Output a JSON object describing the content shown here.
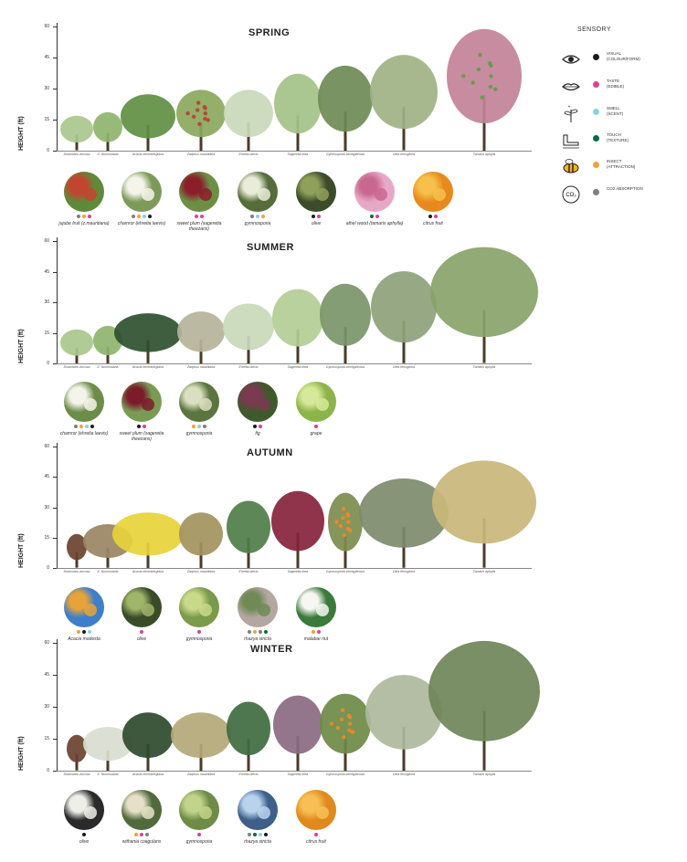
{
  "colors": {
    "visual": "#1b1b1b",
    "taste": "#d9448f",
    "smell": "#8ecde6",
    "touch": "#0d6b3a",
    "insect": "#f0a23a",
    "co2": "#7f7f7f"
  },
  "legend": {
    "title": "SENSORY",
    "items": [
      {
        "key": "visual",
        "icon": "eye-icon",
        "line1": "VISUAL",
        "line2": "(COLOUR/FORM)"
      },
      {
        "key": "taste",
        "icon": "lips-icon",
        "line1": "TASTE",
        "line2": "(EDIBLE)"
      },
      {
        "key": "smell",
        "icon": "plant-scent-icon",
        "line1": "SMELL",
        "line2": "(SCENT)"
      },
      {
        "key": "touch",
        "icon": "hand-touch-icon",
        "line1": "TOUCH",
        "line2": "(TEXTURE)"
      },
      {
        "key": "insect",
        "icon": "bee-icon",
        "line1": "INSECT",
        "line2": "(ATTRACTION)"
      },
      {
        "key": "co2",
        "icon": "co2-icon",
        "line1": "CO2 ABSORPTION",
        "line2": ""
      }
    ]
  },
  "axis": {
    "label": "HEIGHT (ft)",
    "ticks": [
      "0",
      "15",
      "30",
      "45",
      "60"
    ],
    "ylim": [
      0,
      60
    ]
  },
  "species": [
    "Dodonaea viscosa",
    "Z. Nummularia",
    "Acacia ehrenbergiana",
    "Ziziphus mauritiana",
    "Ehretia laevis",
    "Sageretia thea",
    "Gymnosporia senegalensis",
    "Olea ferruginea",
    "Tamarix aphylla"
  ],
  "seasons": [
    {
      "title": "SPRING",
      "trees": [
        {
          "h": 17,
          "w": 38,
          "c": "#a9c78d"
        },
        {
          "h": 19,
          "w": 34,
          "c": "#8fb46d"
        },
        {
          "h": 28,
          "w": 62,
          "c": "#5f8f43"
        },
        {
          "h": 30,
          "w": 56,
          "c": "#8aa85d",
          "accent": "#b64a3a"
        },
        {
          "h": 30,
          "w": 56,
          "c": "#c9d8b8"
        },
        {
          "h": 38,
          "w": 54,
          "c": "#a4c288"
        },
        {
          "h": 42,
          "w": 62,
          "c": "#6f8a55"
        },
        {
          "h": 47,
          "w": 76,
          "c": "#9fb286"
        },
        {
          "h": 60,
          "w": 84,
          "c": "#c28298",
          "accent": "#6b9a4f"
        }
      ],
      "fruits": [
        {
          "label": "jujube fruit (z.mauritiana)",
          "dots": [
            "co2",
            "insect",
            "taste"
          ],
          "c1": "#5f8a3a",
          "c2": "#c2452f"
        },
        {
          "label": "chamror (ehretia laevis)",
          "dots": [
            "co2",
            "insect",
            "smell",
            "visual"
          ],
          "c1": "#7d9a5a",
          "c2": "#f4f4ea"
        },
        {
          "label": "sweet plum (sageretia theezans)",
          "dots": [
            "taste",
            "taste"
          ],
          "c1": "#6d8f45",
          "c2": "#8a1f2b"
        },
        {
          "label": "gymnosporia",
          "dots": [
            "co2",
            "smell",
            "insect"
          ],
          "c1": "#556d3a",
          "c2": "#e9ecd8"
        },
        {
          "label": "olive",
          "dots": [
            "visual",
            "taste"
          ],
          "c1": "#3c4c2a",
          "c2": "#8fa05a"
        },
        {
          "label": "athel wood (tamarix aphylla)",
          "dots": [
            "touch",
            "taste"
          ],
          "c1": "#e7a8c6",
          "c2": "#c9688f"
        },
        {
          "label": "citrus fruit",
          "dots": [
            "visual",
            "taste"
          ],
          "c1": "#e8891e",
          "c2": "#f6c04a"
        }
      ]
    },
    {
      "title": "SUMMER",
      "trees": [
        {
          "h": 17,
          "w": 38,
          "c": "#a9c78d"
        },
        {
          "h": 19,
          "w": 34,
          "c": "#8fb46d"
        },
        {
          "h": 25,
          "w": 76,
          "c": "#2f4f2f"
        },
        {
          "h": 26,
          "w": 54,
          "c": "#b6b39a"
        },
        {
          "h": 30,
          "w": 58,
          "c": "#c9d8b8"
        },
        {
          "h": 37,
          "w": 58,
          "c": "#b3cd94"
        },
        {
          "h": 40,
          "w": 58,
          "c": "#7a9568"
        },
        {
          "h": 46,
          "w": 74,
          "c": "#8ea27a"
        },
        {
          "h": 58,
          "w": 120,
          "c": "#88a36a"
        }
      ],
      "fruits": [
        {
          "label": "chamror (ehretia laevis)",
          "dots": [
            "co2",
            "insect",
            "smell",
            "visual"
          ],
          "c1": "#6c8d4a",
          "c2": "#f4f4ea"
        },
        {
          "label": "sweet plum (sageretia theezans)",
          "dots": [
            "visual",
            "taste"
          ],
          "c1": "#799c55",
          "c2": "#7c1c2a"
        },
        {
          "label": "gymnosporia",
          "dots": [
            "insect",
            "smell",
            "co2"
          ],
          "c1": "#5b7540",
          "c2": "#d9dfc0"
        },
        {
          "label": "fig",
          "dots": [
            "visual",
            "taste"
          ],
          "c1": "#3f5a2a",
          "c2": "#7a3a50"
        },
        {
          "label": "grape",
          "dots": [
            "taste"
          ],
          "c1": "#8db44a",
          "c2": "#d6e89a"
        }
      ]
    },
    {
      "title": "AUTUMN",
      "trees": [
        {
          "h": 17,
          "w": 24,
          "c": "#6b4230"
        },
        {
          "h": 22,
          "w": 56,
          "c": "#9a8563"
        },
        {
          "h": 28,
          "w": 80,
          "c": "#e7d23a"
        },
        {
          "h": 28,
          "w": 50,
          "c": "#a3935e"
        },
        {
          "h": 34,
          "w": 50,
          "c": "#4f7d48"
        },
        {
          "h": 39,
          "w": 60,
          "c": "#86233c"
        },
        {
          "h": 38,
          "w": 40,
          "c": "#7c8c4e",
          "accent": "#e88a2a"
        },
        {
          "h": 45,
          "w": 100,
          "c": "#7d8b6b"
        },
        {
          "h": 54,
          "w": 116,
          "c": "#c9b77a"
        }
      ],
      "fruits": [
        {
          "label": "Acacia modesta",
          "dots": [
            "insect",
            "visual",
            "smell"
          ],
          "c1": "#3e7fc9",
          "c2": "#e7a33a"
        },
        {
          "label": "olive",
          "dots": [
            "taste"
          ],
          "c1": "#3a4b28",
          "c2": "#9fb56a"
        },
        {
          "label": "gymnosporia",
          "dots": [
            "taste"
          ],
          "c1": "#7a9a4c",
          "c2": "#c9d98a"
        },
        {
          "label": "rhazya stricta",
          "dots": [
            "co2",
            "insect",
            "co2",
            "touch"
          ],
          "c1": "#b4a6a0",
          "c2": "#6f8a56"
        },
        {
          "label": "malabar nut",
          "dots": [
            "insect",
            "taste"
          ],
          "c1": "#3a7a3a",
          "c2": "#f6f6f2"
        }
      ]
    },
    {
      "title": "WINTER",
      "trees": [
        {
          "h": 17,
          "w": 24,
          "c": "#6b4230"
        },
        {
          "h": 21,
          "w": 56,
          "c": "#d9dccf"
        },
        {
          "h": 28,
          "w": 58,
          "c": "#2e4a2e"
        },
        {
          "h": 28,
          "w": 68,
          "c": "#b3a877"
        },
        {
          "h": 33,
          "w": 50,
          "c": "#3f6b40"
        },
        {
          "h": 36,
          "w": 56,
          "c": "#8a6a82"
        },
        {
          "h": 37,
          "w": 58,
          "c": "#6d8a45",
          "accent": "#e88a2a"
        },
        {
          "h": 46,
          "w": 86,
          "c": "#aeb99c"
        },
        {
          "h": 62,
          "w": 124,
          "c": "#6f8558"
        }
      ],
      "fruits": [
        {
          "label": "olive",
          "dots": [
            "visual"
          ],
          "c1": "#2a2a2a",
          "c2": "#efefe9"
        },
        {
          "label": "withania coagulans",
          "dots": [
            "insect",
            "taste",
            "co2"
          ],
          "c1": "#4f6b3c",
          "c2": "#e6e0c9"
        },
        {
          "label": "gymnosporia",
          "dots": [
            "taste"
          ],
          "c1": "#6f8c47",
          "c2": "#c2d38a"
        },
        {
          "label": "rhazya stricta",
          "dots": [
            "co2",
            "touch",
            "smell",
            "visual"
          ],
          "c1": "#3f5f8a",
          "c2": "#b9d3ef"
        },
        {
          "label": "citrus fruit",
          "dots": [
            "taste"
          ],
          "c1": "#e08a1e",
          "c2": "#f7bf55"
        }
      ]
    }
  ]
}
